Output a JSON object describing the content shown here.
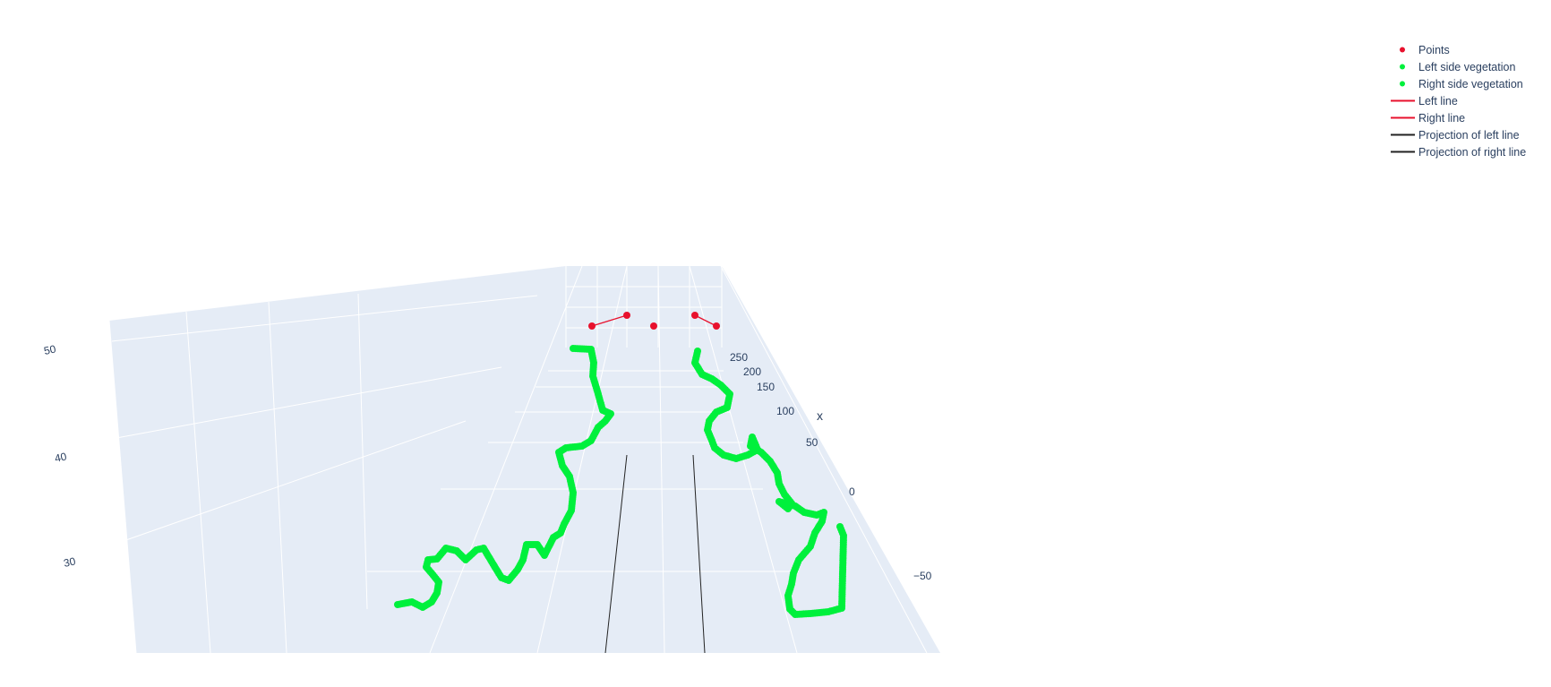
{
  "chart_data": {
    "type": "scatter3d",
    "title": "",
    "axes": {
      "x": {
        "title": "x",
        "ticks": [
          "250",
          "200",
          "150",
          "100",
          "50",
          "0",
          "−50"
        ],
        "range": [
          -75,
          275
        ]
      },
      "y": {
        "title": "",
        "ticks": []
      },
      "z": {
        "title": "",
        "ticks": [
          "50",
          "40",
          "30"
        ],
        "range": [
          22,
          55
        ]
      }
    },
    "grid": true,
    "legend_position": "top-right",
    "series": [
      {
        "name": "Points",
        "mode": "markers",
        "color": "#e8112d"
      },
      {
        "name": "Left side vegetation",
        "mode": "markers",
        "color": "#00f03c"
      },
      {
        "name": "Right side vegetation",
        "mode": "markers",
        "color": "#00f03c"
      },
      {
        "name": "Left line",
        "mode": "lines",
        "color": "#e8112d"
      },
      {
        "name": "Right line",
        "mode": "lines",
        "color": "#e8112d"
      },
      {
        "name": "Projection of left line",
        "mode": "lines",
        "color": "#222222"
      },
      {
        "name": "Projection of right line",
        "mode": "lines",
        "color": "#222222"
      }
    ]
  },
  "colors": {
    "scene_bg": "#e5ecf6",
    "grid": "#ffffff",
    "text": "#2a3f5f"
  }
}
